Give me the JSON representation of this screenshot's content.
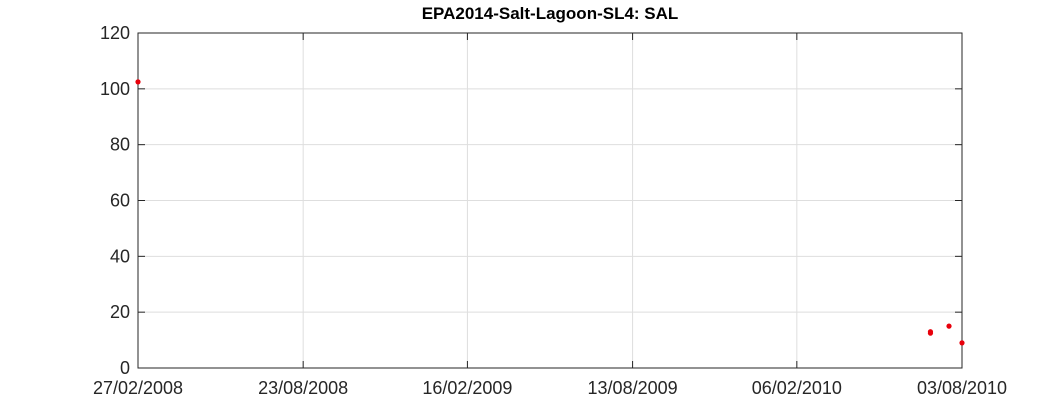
{
  "chart_data": {
    "type": "scatter",
    "title": "EPA2014-Salt-Lagoon-SL4: SAL",
    "xlabel": "",
    "ylabel": "",
    "x_axis_type": "date",
    "xlim": [
      "2008-02-27",
      "2010-08-03"
    ],
    "ylim": [
      0,
      120
    ],
    "x_ticks": [
      {
        "date": "2008-02-27",
        "label": "27/02/2008"
      },
      {
        "date": "2008-08-23",
        "label": "23/08/2008"
      },
      {
        "date": "2009-02-16",
        "label": "16/02/2009"
      },
      {
        "date": "2009-08-13",
        "label": "13/08/2009"
      },
      {
        "date": "2010-02-06",
        "label": "06/02/2010"
      },
      {
        "date": "2010-08-03",
        "label": "03/08/2010"
      }
    ],
    "y_ticks": [
      0,
      20,
      40,
      60,
      80,
      100,
      120
    ],
    "grid": true,
    "marker_color": "#e8000b",
    "series": [
      {
        "x": [
          "2008-02-27",
          "2010-06-30",
          "2010-06-30",
          "2010-07-20",
          "2010-08-03"
        ],
        "y": [
          102.5,
          12.5,
          13,
          15,
          9
        ]
      }
    ]
  }
}
